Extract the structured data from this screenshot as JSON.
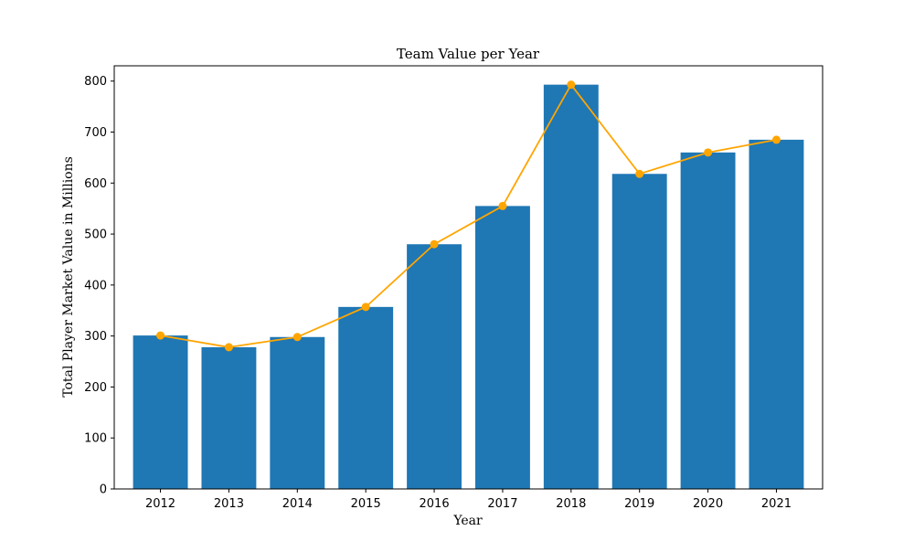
{
  "chart_data": {
    "type": "bar",
    "title": "Team Value per Year",
    "xlabel": "Year",
    "ylabel": "Total Player Market Value in Millions",
    "categories": [
      "2012",
      "2013",
      "2014",
      "2015",
      "2016",
      "2017",
      "2018",
      "2019",
      "2020",
      "2021"
    ],
    "values": [
      301,
      278,
      298,
      357,
      480,
      555,
      793,
      618,
      660,
      685
    ],
    "line_values": [
      301,
      278,
      298,
      357,
      480,
      555,
      793,
      618,
      660,
      685
    ],
    "ylim": [
      0,
      830
    ],
    "yticks": [
      0,
      100,
      200,
      300,
      400,
      500,
      600,
      700,
      800
    ],
    "grid": false,
    "colors": {
      "bar": "#1f77b4",
      "line": "#ffa500"
    }
  }
}
